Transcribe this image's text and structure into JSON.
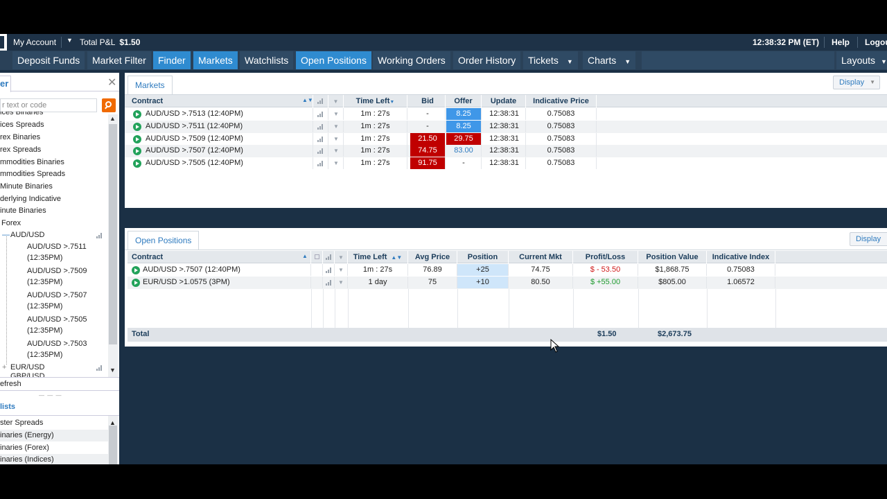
{
  "topbar": {
    "account_label": "My Account",
    "total_pl_label": "Total P&L",
    "total_pl_value": "$1.50",
    "time": "12:38:32 PM (ET)",
    "help": "Help",
    "logout": "Logou"
  },
  "nav": {
    "deposit": "Deposit Funds",
    "market_filter": "Market Filter",
    "finder": "Finder",
    "markets": "Markets",
    "watchlists": "Watchlists",
    "open_positions": "Open Positions",
    "working_orders": "Working Orders",
    "order_history": "Order History",
    "tickets": "Tickets",
    "charts": "Charts",
    "layouts": "Layouts"
  },
  "finder": {
    "tab_label": "er",
    "search_placeholder": "r text or code",
    "items": [
      "ices Binaries",
      "ices Spreads",
      "rex Binaries",
      "rex Spreads",
      "mmodities Binaries",
      "mmodities Spreads",
      "Minute Binaries",
      "derlying Indicative",
      "inute Binaries",
      "Forex"
    ],
    "audusd": "AUD/USD",
    "children": [
      {
        "line1": "AUD/USD >.7511",
        "line2": "(12:35PM)"
      },
      {
        "line1": "AUD/USD >.7509",
        "line2": "(12:35PM)"
      },
      {
        "line1": "AUD/USD >.7507",
        "line2": "(12:35PM)"
      },
      {
        "line1": "AUD/USD >.7505",
        "line2": "(12:35PM)"
      },
      {
        "line1": "AUD/USD >.7503",
        "line2": "(12:35PM)"
      }
    ],
    "eurusd": "EUR/USD",
    "gbpusd": "GBP/USD",
    "refresh": "efresh"
  },
  "watchlists": {
    "header": "lists",
    "items": [
      "ster Spreads",
      "inaries (Energy)",
      "inaries (Forex)",
      "inaries (Indices)"
    ]
  },
  "markets": {
    "tab_label": "Markets",
    "display_label": "Display",
    "columns": {
      "contract": "Contract",
      "time_left": "Time Left",
      "bid": "Bid",
      "offer": "Offer",
      "update": "Update",
      "indicative_price": "Indicative Price"
    },
    "rows": [
      {
        "contract": "AUD/USD >.7513 (12:40PM)",
        "time_left": "1m : 27s",
        "bid": "-",
        "offer": "8.25",
        "update": "12:38:31",
        "indicative": "0.75083"
      },
      {
        "contract": "AUD/USD >.7511 (12:40PM)",
        "time_left": "1m : 27s",
        "bid": "-",
        "offer": "8.25",
        "update": "12:38:31",
        "indicative": "0.75083"
      },
      {
        "contract": "AUD/USD >.7509 (12:40PM)",
        "time_left": "1m : 27s",
        "bid": "21.50",
        "offer": "29.75",
        "update": "12:38:31",
        "indicative": "0.75083"
      },
      {
        "contract": "AUD/USD >.7507 (12:40PM)",
        "time_left": "1m : 27s",
        "bid": "74.75",
        "offer": "83.00",
        "update": "12:38:31",
        "indicative": "0.75083"
      },
      {
        "contract": "AUD/USD >.7505 (12:40PM)",
        "time_left": "1m : 27s",
        "bid": "91.75",
        "offer": "-",
        "update": "12:38:31",
        "indicative": "0.75083"
      }
    ]
  },
  "positions": {
    "tab_label": "Open Positions",
    "display_label": "Display",
    "columns": {
      "contract": "Contract",
      "time_left": "Time Left",
      "avg_price": "Avg Price",
      "position": "Position",
      "current_mkt": "Current Mkt",
      "profit_loss": "Profit/Loss",
      "position_value": "Position Value",
      "indicative_index": "Indicative Index"
    },
    "rows": [
      {
        "contract": "AUD/USD >.7507 (12:40PM)",
        "time_left": "1m : 27s",
        "avg_price": "76.89",
        "position": "+25",
        "current_mkt": "74.75",
        "profit_loss": "$ - 53.50",
        "position_value": "$1,868.75",
        "indicative": "0.75083"
      },
      {
        "contract": "EUR/USD >1.0575 (3PM)",
        "time_left": "1 day",
        "avg_price": "75",
        "position": "+10",
        "current_mkt": "80.50",
        "profit_loss": "$ +55.00",
        "position_value": "$805.00",
        "indicative": "1.06572"
      }
    ],
    "total_label": "Total",
    "total_pl": "$1.50",
    "total_value": "$2,673.75"
  },
  "colors": {
    "bid_red": "#c00000",
    "offer_blue": "#3f97e8",
    "nav_active": "#2f8bd0",
    "search_orange": "#f06a00"
  }
}
